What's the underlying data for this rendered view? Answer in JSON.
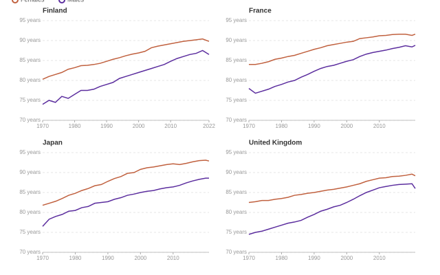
{
  "chart_data": [
    {
      "type": "line",
      "title": "Finland",
      "x": [
        1970,
        1972,
        1974,
        1976,
        1978,
        1980,
        1982,
        1984,
        1986,
        1988,
        1990,
        1992,
        1994,
        1996,
        1998,
        2000,
        2002,
        2004,
        2006,
        2008,
        2010,
        2012,
        2014,
        2016,
        2018,
        2020,
        2022
      ],
      "series": [
        {
          "name": "Females",
          "color": "#c0603e",
          "values": [
            80.3,
            81,
            81.5,
            82,
            82.8,
            83.2,
            83.7,
            83.8,
            84,
            84.3,
            84.8,
            85.3,
            85.7,
            86.2,
            86.6,
            86.9,
            87.3,
            88.2,
            88.6,
            88.9,
            89.2,
            89.5,
            89.8,
            90,
            90.2,
            90.4,
            89.8
          ]
        },
        {
          "name": "Males",
          "color": "#5b2d9e",
          "values": [
            74,
            75,
            74.5,
            76,
            75.5,
            76.5,
            77.5,
            77.5,
            77.8,
            78.5,
            79,
            79.5,
            80.5,
            81,
            81.5,
            82,
            82.5,
            83,
            83.5,
            84,
            84.8,
            85.5,
            86,
            86.5,
            86.8,
            87.5,
            86.5
          ]
        }
      ],
      "xlim": [
        1970,
        2022
      ],
      "xticks": [
        1970,
        1980,
        1990,
        2000,
        2010,
        2022
      ],
      "ylim": [
        70,
        95
      ],
      "yticks": [
        {
          "value": 70,
          "label": "70 years"
        },
        {
          "value": 75,
          "label": "75 years"
        },
        {
          "value": 80,
          "label": "80 years"
        },
        {
          "value": 85,
          "label": "85 years"
        },
        {
          "value": 90,
          "label": "90 years"
        },
        {
          "value": 95,
          "label": "95 years"
        }
      ],
      "grid": true
    },
    {
      "type": "line",
      "title": "France",
      "x": [
        1970,
        1972,
        1974,
        1976,
        1978,
        1980,
        1982,
        1984,
        1986,
        1988,
        1990,
        1992,
        1994,
        1996,
        1998,
        2000,
        2002,
        2004,
        2006,
        2008,
        2010,
        2012,
        2014,
        2016,
        2018,
        2020,
        2021
      ],
      "series": [
        {
          "name": "Females",
          "color": "#c0603e",
          "values": [
            84,
            84,
            84.3,
            84.7,
            85.3,
            85.6,
            86,
            86.3,
            86.8,
            87.3,
            87.8,
            88.2,
            88.7,
            89,
            89.3,
            89.6,
            89.8,
            90.5,
            90.7,
            90.9,
            91.2,
            91.3,
            91.5,
            91.6,
            91.6,
            91.3,
            91.6
          ]
        },
        {
          "name": "Males",
          "color": "#5b2d9e",
          "values": [
            78,
            76.8,
            77.3,
            77.8,
            78.5,
            79,
            79.6,
            80,
            80.8,
            81.5,
            82.3,
            83,
            83.5,
            83.8,
            84.3,
            84.8,
            85.2,
            86,
            86.6,
            87,
            87.3,
            87.6,
            88,
            88.3,
            88.7,
            88.4,
            88.8
          ]
        }
      ],
      "xlim": [
        1970,
        2021
      ],
      "xticks": [
        1970,
        1980,
        1990,
        2000,
        2010
      ],
      "ylim": [
        70,
        95
      ],
      "yticks": [
        {
          "value": 70,
          "label": "70 years"
        },
        {
          "value": 75,
          "label": "75 years"
        },
        {
          "value": 80,
          "label": "80 years"
        },
        {
          "value": 85,
          "label": "85 years"
        },
        {
          "value": 90,
          "label": "90 years"
        },
        {
          "value": 95,
          "label": "95 years"
        }
      ],
      "grid": true
    },
    {
      "type": "line",
      "title": "Japan",
      "x": [
        1970,
        1972,
        1974,
        1976,
        1978,
        1980,
        1982,
        1984,
        1986,
        1988,
        1990,
        1992,
        1994,
        1996,
        1998,
        2000,
        2002,
        2004,
        2006,
        2008,
        2010,
        2012,
        2014,
        2016,
        2018,
        2020,
        2021
      ],
      "series": [
        {
          "name": "Females",
          "color": "#c0603e",
          "values": [
            81.8,
            82.3,
            82.8,
            83.5,
            84.3,
            84.8,
            85.5,
            86,
            86.7,
            87,
            87.8,
            88.5,
            89,
            89.8,
            90,
            90.8,
            91.2,
            91.4,
            91.7,
            92,
            92.2,
            92,
            92.3,
            92.7,
            93,
            93.1,
            92.9
          ]
        },
        {
          "name": "Males",
          "color": "#5b2d9e",
          "values": [
            76.5,
            78.3,
            79,
            79.5,
            80.3,
            80.5,
            81.2,
            81.5,
            82.3,
            82.5,
            82.7,
            83.3,
            83.7,
            84.3,
            84.6,
            85,
            85.3,
            85.5,
            85.9,
            86.2,
            86.4,
            86.8,
            87.4,
            87.9,
            88.3,
            88.6,
            88.6
          ]
        }
      ],
      "xlim": [
        1970,
        2021
      ],
      "xticks": [
        1970,
        1980,
        1990,
        2000,
        2010
      ],
      "ylim": [
        70,
        95
      ],
      "yticks": [
        {
          "value": 70,
          "label": "70 years"
        },
        {
          "value": 75,
          "label": "75 years"
        },
        {
          "value": 80,
          "label": "80 years"
        },
        {
          "value": 85,
          "label": "85 years"
        },
        {
          "value": 90,
          "label": "90 years"
        },
        {
          "value": 95,
          "label": "95 years"
        }
      ],
      "grid": true
    },
    {
      "type": "line",
      "title": "United Kingdom",
      "x": [
        1970,
        1972,
        1974,
        1976,
        1978,
        1980,
        1982,
        1984,
        1986,
        1988,
        1990,
        1992,
        1994,
        1996,
        1998,
        2000,
        2002,
        2004,
        2006,
        2008,
        2010,
        2012,
        2014,
        2016,
        2018,
        2020,
        2021
      ],
      "series": [
        {
          "name": "Females",
          "color": "#c0603e",
          "values": [
            82.5,
            82.7,
            83,
            83,
            83.3,
            83.5,
            83.8,
            84.3,
            84.5,
            84.8,
            85,
            85.3,
            85.6,
            85.8,
            86.1,
            86.4,
            86.8,
            87.2,
            87.8,
            88.2,
            88.6,
            88.7,
            89,
            89.1,
            89.3,
            89.6,
            89.2
          ]
        },
        {
          "name": "Males",
          "color": "#5b2d9e",
          "values": [
            74.5,
            75,
            75.3,
            75.8,
            76.3,
            76.8,
            77.3,
            77.6,
            78,
            78.8,
            79.5,
            80.3,
            80.8,
            81.4,
            81.8,
            82.5,
            83.3,
            84.2,
            85,
            85.6,
            86.2,
            86.5,
            86.8,
            87,
            87.1,
            87.2,
            86
          ]
        }
      ],
      "xlim": [
        1970,
        2021
      ],
      "xticks": [
        1970,
        1980,
        1990,
        2000,
        2010
      ],
      "ylim": [
        70,
        95
      ],
      "yticks": [
        {
          "value": 70,
          "label": "70 years"
        },
        {
          "value": 75,
          "label": "75 years"
        },
        {
          "value": 80,
          "label": "80 years"
        },
        {
          "value": 85,
          "label": "85 years"
        },
        {
          "value": 90,
          "label": "90 years"
        },
        {
          "value": 95,
          "label": "95 years"
        }
      ],
      "grid": true
    }
  ]
}
